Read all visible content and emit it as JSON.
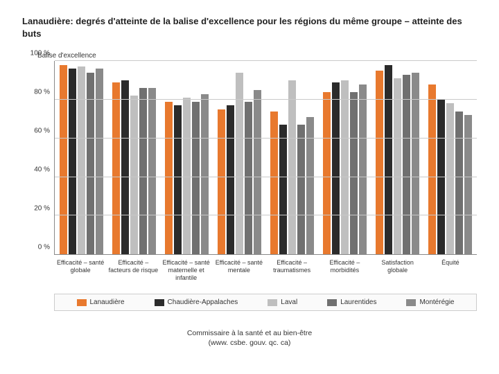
{
  "title": "Lanaudière: degrés d'atteinte de la balise d'excellence pour les régions du même groupe – atteinte des buts",
  "ylabel": "Balise d'excellence",
  "chart": {
    "type": "bar",
    "ylim": [
      0,
      100
    ],
    "yticks": [
      {
        "v": 0,
        "label": "0 %"
      },
      {
        "v": 20,
        "label": "20 %"
      },
      {
        "v": 40,
        "label": "40 %"
      },
      {
        "v": 60,
        "label": "60 %"
      },
      {
        "v": 80,
        "label": "80 %"
      },
      {
        "v": 100,
        "label": "100 %"
      }
    ],
    "grid_color": "#c9c9c9",
    "background_color": "#ffffff",
    "categories": [
      "Efficacité – santé globale",
      "Efficacité – facteurs de risque",
      "Efficacité – santé maternelle et infantile",
      "Efficacité – santé mentale",
      "Efficacité – traumatismes",
      "Efficacité – morbidités",
      "Satisfaction globale",
      "Équité"
    ],
    "series": [
      {
        "name": "Lanaudière",
        "color": "#e8792e",
        "values": [
          98,
          89,
          79,
          75,
          74,
          84,
          95,
          88
        ]
      },
      {
        "name": "Chaudière-Appalaches",
        "color": "#2b2b2b",
        "values": [
          96,
          90,
          77,
          77,
          67,
          89,
          98,
          80
        ]
      },
      {
        "name": "Laval",
        "color": "#bfbfbf",
        "values": [
          97,
          82,
          81,
          94,
          90,
          90,
          91,
          78
        ]
      },
      {
        "name": "Laurentides",
        "color": "#707070",
        "values": [
          94,
          86,
          79,
          79,
          67,
          84,
          93,
          74
        ]
      },
      {
        "name": "Montérégie",
        "color": "#8a8a8a",
        "values": [
          96,
          86,
          83,
          85,
          71,
          88,
          94,
          72
        ]
      }
    ]
  },
  "footer": {
    "line1": "Commissaire à la santé et au bien-être",
    "line2": "(www. csbe. gouv. qc. ca)"
  }
}
